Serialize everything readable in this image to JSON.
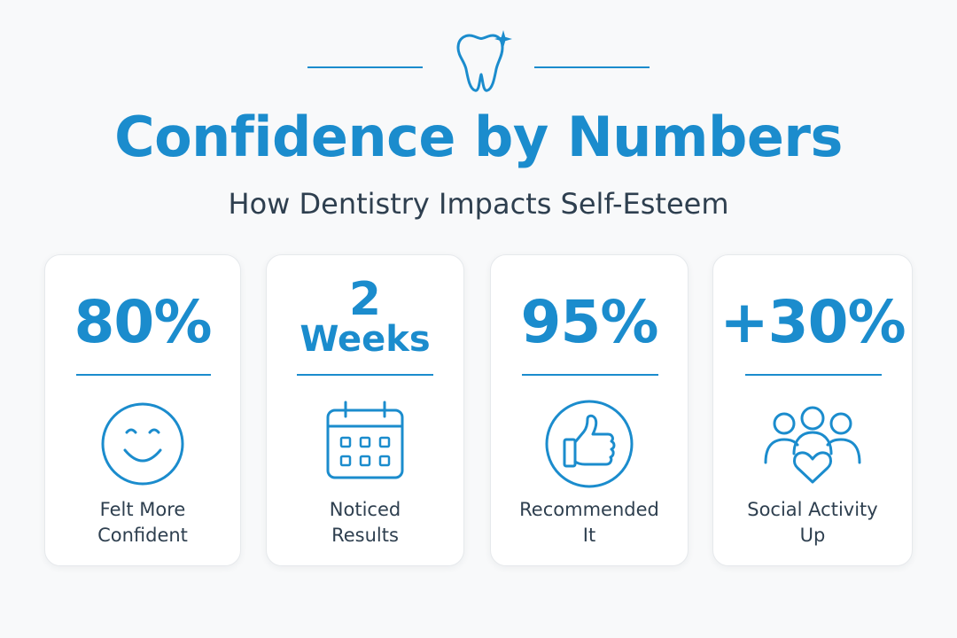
{
  "header": {
    "title": "Confidence by Numbers",
    "subtitle": "How Dentistry Impacts Self-Esteem",
    "icon": "tooth-sparkle-icon"
  },
  "colors": {
    "accent": "#1b8ccd",
    "text": "#2e3f4f",
    "background": "#f8f9fa",
    "card": "#ffffff"
  },
  "stats": [
    {
      "value": "80%",
      "label_line1": "Felt More",
      "label_line2": "Confident",
      "icon": "smiley-face-icon"
    },
    {
      "value_line1": "2",
      "value_line2": "Weeks",
      "label_line1": "Noticed",
      "label_line2": "Results",
      "icon": "calendar-icon"
    },
    {
      "value": "95%",
      "label_line1": "Recommended",
      "label_line2": "It",
      "icon": "thumbs-up-icon"
    },
    {
      "value": "+30%",
      "label_line1": "Social Activity",
      "label_line2": "Up",
      "icon": "people-heart-icon"
    }
  ]
}
